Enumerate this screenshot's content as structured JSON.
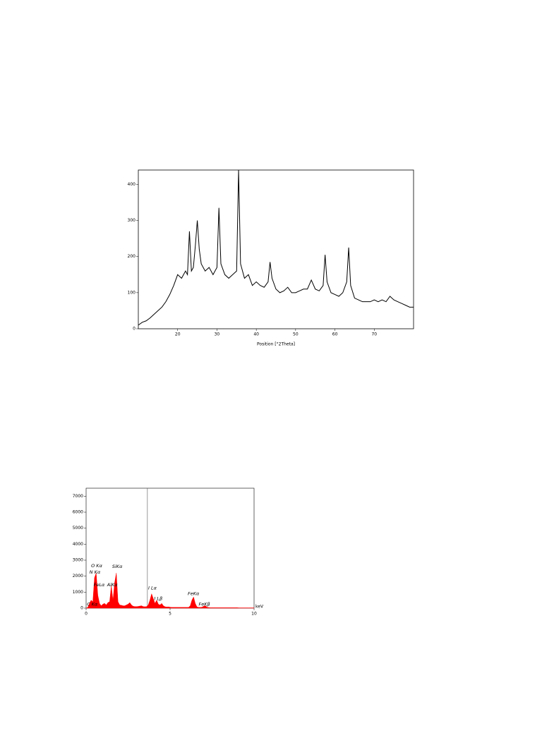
{
  "chart_data": [
    {
      "type": "line",
      "xlabel": "Position [°2Theta]",
      "xlim": [
        10,
        80
      ],
      "ylim": [
        0,
        440
      ],
      "xticks": [
        20,
        30,
        40,
        50,
        60,
        70
      ],
      "yticks": [
        0,
        100,
        200,
        300,
        400
      ],
      "color": "#000000",
      "x": [
        10,
        11,
        12,
        13,
        14,
        15,
        16,
        17,
        18,
        19,
        20,
        21,
        22,
        22.5,
        23,
        23.5,
        24,
        24.5,
        25,
        25.5,
        26,
        27,
        28,
        29,
        30,
        30.5,
        31,
        32,
        33,
        34,
        35,
        35.5,
        36,
        37,
        38,
        39,
        40,
        41,
        42,
        43,
        43.5,
        44,
        45,
        46,
        47,
        48,
        49,
        50,
        51,
        52,
        53,
        54,
        55,
        56,
        57,
        57.5,
        58,
        59,
        60,
        61,
        62,
        63,
        63.5,
        64,
        65,
        66,
        67,
        68,
        69,
        70,
        71,
        72,
        73,
        74,
        75,
        76,
        77,
        78,
        79,
        80
      ],
      "series": [
        {
          "values": [
            10,
            18,
            22,
            30,
            40,
            50,
            60,
            75,
            95,
            120,
            150,
            140,
            160,
            150,
            270,
            160,
            170,
            230,
            300,
            220,
            180,
            160,
            170,
            150,
            170,
            335,
            180,
            150,
            140,
            150,
            160,
            440,
            180,
            140,
            150,
            120,
            130,
            120,
            115,
            130,
            185,
            140,
            110,
            100,
            105,
            115,
            100,
            100,
            105,
            110,
            110,
            135,
            110,
            105,
            120,
            205,
            130,
            100,
            95,
            90,
            100,
            130,
            225,
            120,
            85,
            80,
            75,
            75,
            75,
            80,
            75,
            80,
            75,
            90,
            80,
            75,
            70,
            65,
            60,
            60
          ]
        }
      ]
    },
    {
      "type": "area",
      "xlabel": "keV",
      "xlim": [
        0,
        10
      ],
      "ylim": [
        0,
        7500
      ],
      "xticks": [
        0,
        5,
        10
      ],
      "yticks": [
        0,
        1000,
        2000,
        3000,
        4000,
        5000,
        6000,
        7000
      ],
      "color": "#ff0000",
      "marker_x": 3.65,
      "x": [
        0,
        0.1,
        0.2,
        0.3,
        0.4,
        0.5,
        0.6,
        0.7,
        0.8,
        0.9,
        1,
        1.1,
        1.2,
        1.3,
        1.4,
        1.5,
        1.6,
        1.7,
        1.8,
        1.9,
        2,
        2.1,
        2.2,
        2.3,
        2.4,
        2.5,
        2.6,
        2.7,
        2.8,
        2.9,
        3,
        3.1,
        3.2,
        3.3,
        3.4,
        3.5,
        3.6,
        3.7,
        3.8,
        3.9,
        4,
        4.1,
        4.2,
        4.3,
        4.4,
        4.5,
        4.6,
        4.7,
        4.8,
        4.9,
        5,
        5.1,
        5.2,
        5.3,
        5.4,
        5.5,
        5.6,
        5.7,
        5.8,
        5.9,
        6,
        6.1,
        6.2,
        6.3,
        6.4,
        6.5,
        6.6,
        6.7,
        6.8,
        6.9,
        7,
        7.1,
        7.2,
        7.3,
        7.4,
        7.5,
        7.6,
        7.7,
        7.8,
        7.9,
        8,
        8.1,
        8.2,
        8.3,
        8.4,
        8.5,
        8.6,
        8.7,
        8.8,
        8.9,
        9,
        9.1,
        9.2,
        9.3,
        9.4,
        9.5,
        9.6,
        9.7,
        9.8,
        9.9,
        10
      ],
      "series": [
        {
          "values": [
            0,
            50,
            300,
            500,
            400,
            1900,
            2200,
            800,
            300,
            150,
            250,
            300,
            200,
            350,
            400,
            1400,
            500,
            1600,
            2200,
            400,
            200,
            180,
            150,
            150,
            200,
            250,
            350,
            200,
            120,
            100,
            100,
            110,
            130,
            150,
            100,
            90,
            100,
            200,
            500,
            900,
            600,
            300,
            500,
            250,
            200,
            300,
            150,
            90,
            70,
            80,
            60,
            50,
            50,
            50,
            50,
            50,
            50,
            50,
            50,
            50,
            50,
            50,
            150,
            500,
            700,
            300,
            80,
            50,
            50,
            60,
            120,
            150,
            60,
            40,
            30,
            30,
            30,
            30,
            30,
            30,
            30,
            30,
            30,
            30,
            30,
            30,
            30,
            30,
            30,
            30,
            30,
            20,
            20,
            20,
            20,
            20,
            20,
            20,
            20,
            20,
            20
          ]
        }
      ],
      "annotations": [
        {
          "text": "O Kα",
          "x": 0.3,
          "y": 2650
        },
        {
          "text": "N Kα",
          "x": 0.2,
          "y": 2250
        },
        {
          "text": "FeLα",
          "x": 0.45,
          "y": 1450
        },
        {
          "text": "AlKα",
          "x": 1.25,
          "y": 1450
        },
        {
          "text": "SiKα",
          "x": 1.55,
          "y": 2600
        },
        {
          "text": "C Kα",
          "x": 0.05,
          "y": 250
        },
        {
          "text": "I Lα",
          "x": 3.7,
          "y": 1250
        },
        {
          "text": "I Lβ",
          "x": 4.05,
          "y": 600
        },
        {
          "text": "FeKα",
          "x": 6.05,
          "y": 900
        },
        {
          "text": "FeKβ",
          "x": 6.7,
          "y": 250
        }
      ]
    }
  ]
}
